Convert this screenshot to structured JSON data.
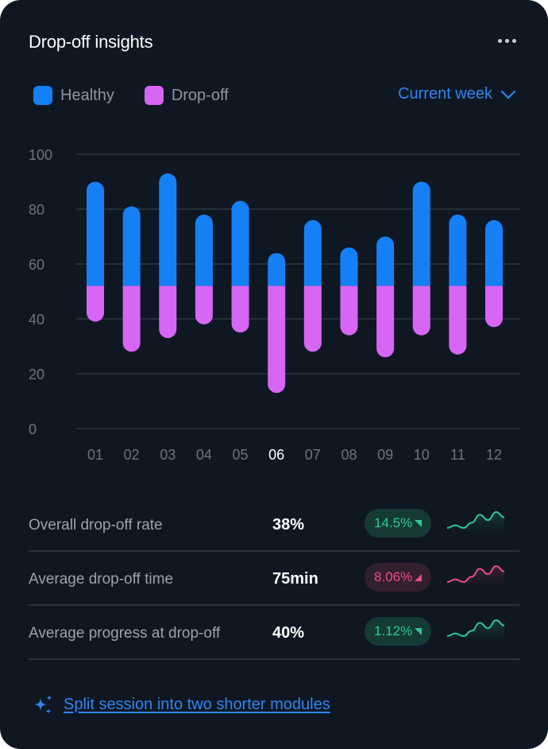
{
  "header": {
    "title": "Drop-off insights",
    "more_icon": "more-horizontal-icon"
  },
  "legend": [
    {
      "label": "Healthy",
      "color": "#1580f5"
    },
    {
      "label": "Drop-off",
      "color": "#d766f5"
    }
  ],
  "period_select": {
    "value": "Current week",
    "icon": "chevron-down-icon"
  },
  "chart_data": {
    "type": "bar",
    "stacked": true,
    "categories": [
      "01",
      "02",
      "03",
      "04",
      "05",
      "06",
      "07",
      "08",
      "09",
      "10",
      "11",
      "12"
    ],
    "highlighted_category": "06",
    "split_value": 52,
    "series": [
      {
        "name": "Healthy",
        "color": "#1580f5",
        "range_from": 52,
        "top_values": [
          90,
          81,
          93,
          78,
          83,
          64,
          76,
          66,
          70,
          90,
          78,
          76
        ]
      },
      {
        "name": "Drop-off",
        "color": "#d766f5",
        "range_to": 52,
        "bottom_values": [
          39,
          28,
          33,
          38,
          35,
          13,
          28,
          34,
          26,
          34,
          27,
          37
        ]
      }
    ],
    "y_ticks": [
      0,
      20,
      40,
      60,
      80,
      100
    ],
    "ylim": [
      0,
      100
    ],
    "grid": true,
    "title": "",
    "xlabel": "",
    "ylabel": "",
    "legend_position": "top-left"
  },
  "metrics": [
    {
      "label": "Overall drop-off rate",
      "value": "38%",
      "change": "14.5%",
      "trend": "good",
      "color": "#2fc79a",
      "sparkline": [
        4,
        5,
        4,
        6,
        9,
        7,
        10,
        8
      ]
    },
    {
      "label": "Average drop-off time",
      "value": "75min",
      "change": "8.06%",
      "trend": "bad",
      "color": "#ef4a86",
      "sparkline": [
        4,
        5,
        4,
        6,
        9,
        7,
        10,
        8
      ]
    },
    {
      "label": "Average progress at drop-off",
      "value": "40%",
      "change": "1.12%",
      "trend": "good",
      "color": "#2fc79a",
      "sparkline": [
        4,
        5,
        4,
        6,
        9,
        7,
        10,
        8
      ]
    }
  ],
  "suggestion": {
    "icon": "sparkles-icon",
    "text": "Split session into two shorter modules"
  }
}
